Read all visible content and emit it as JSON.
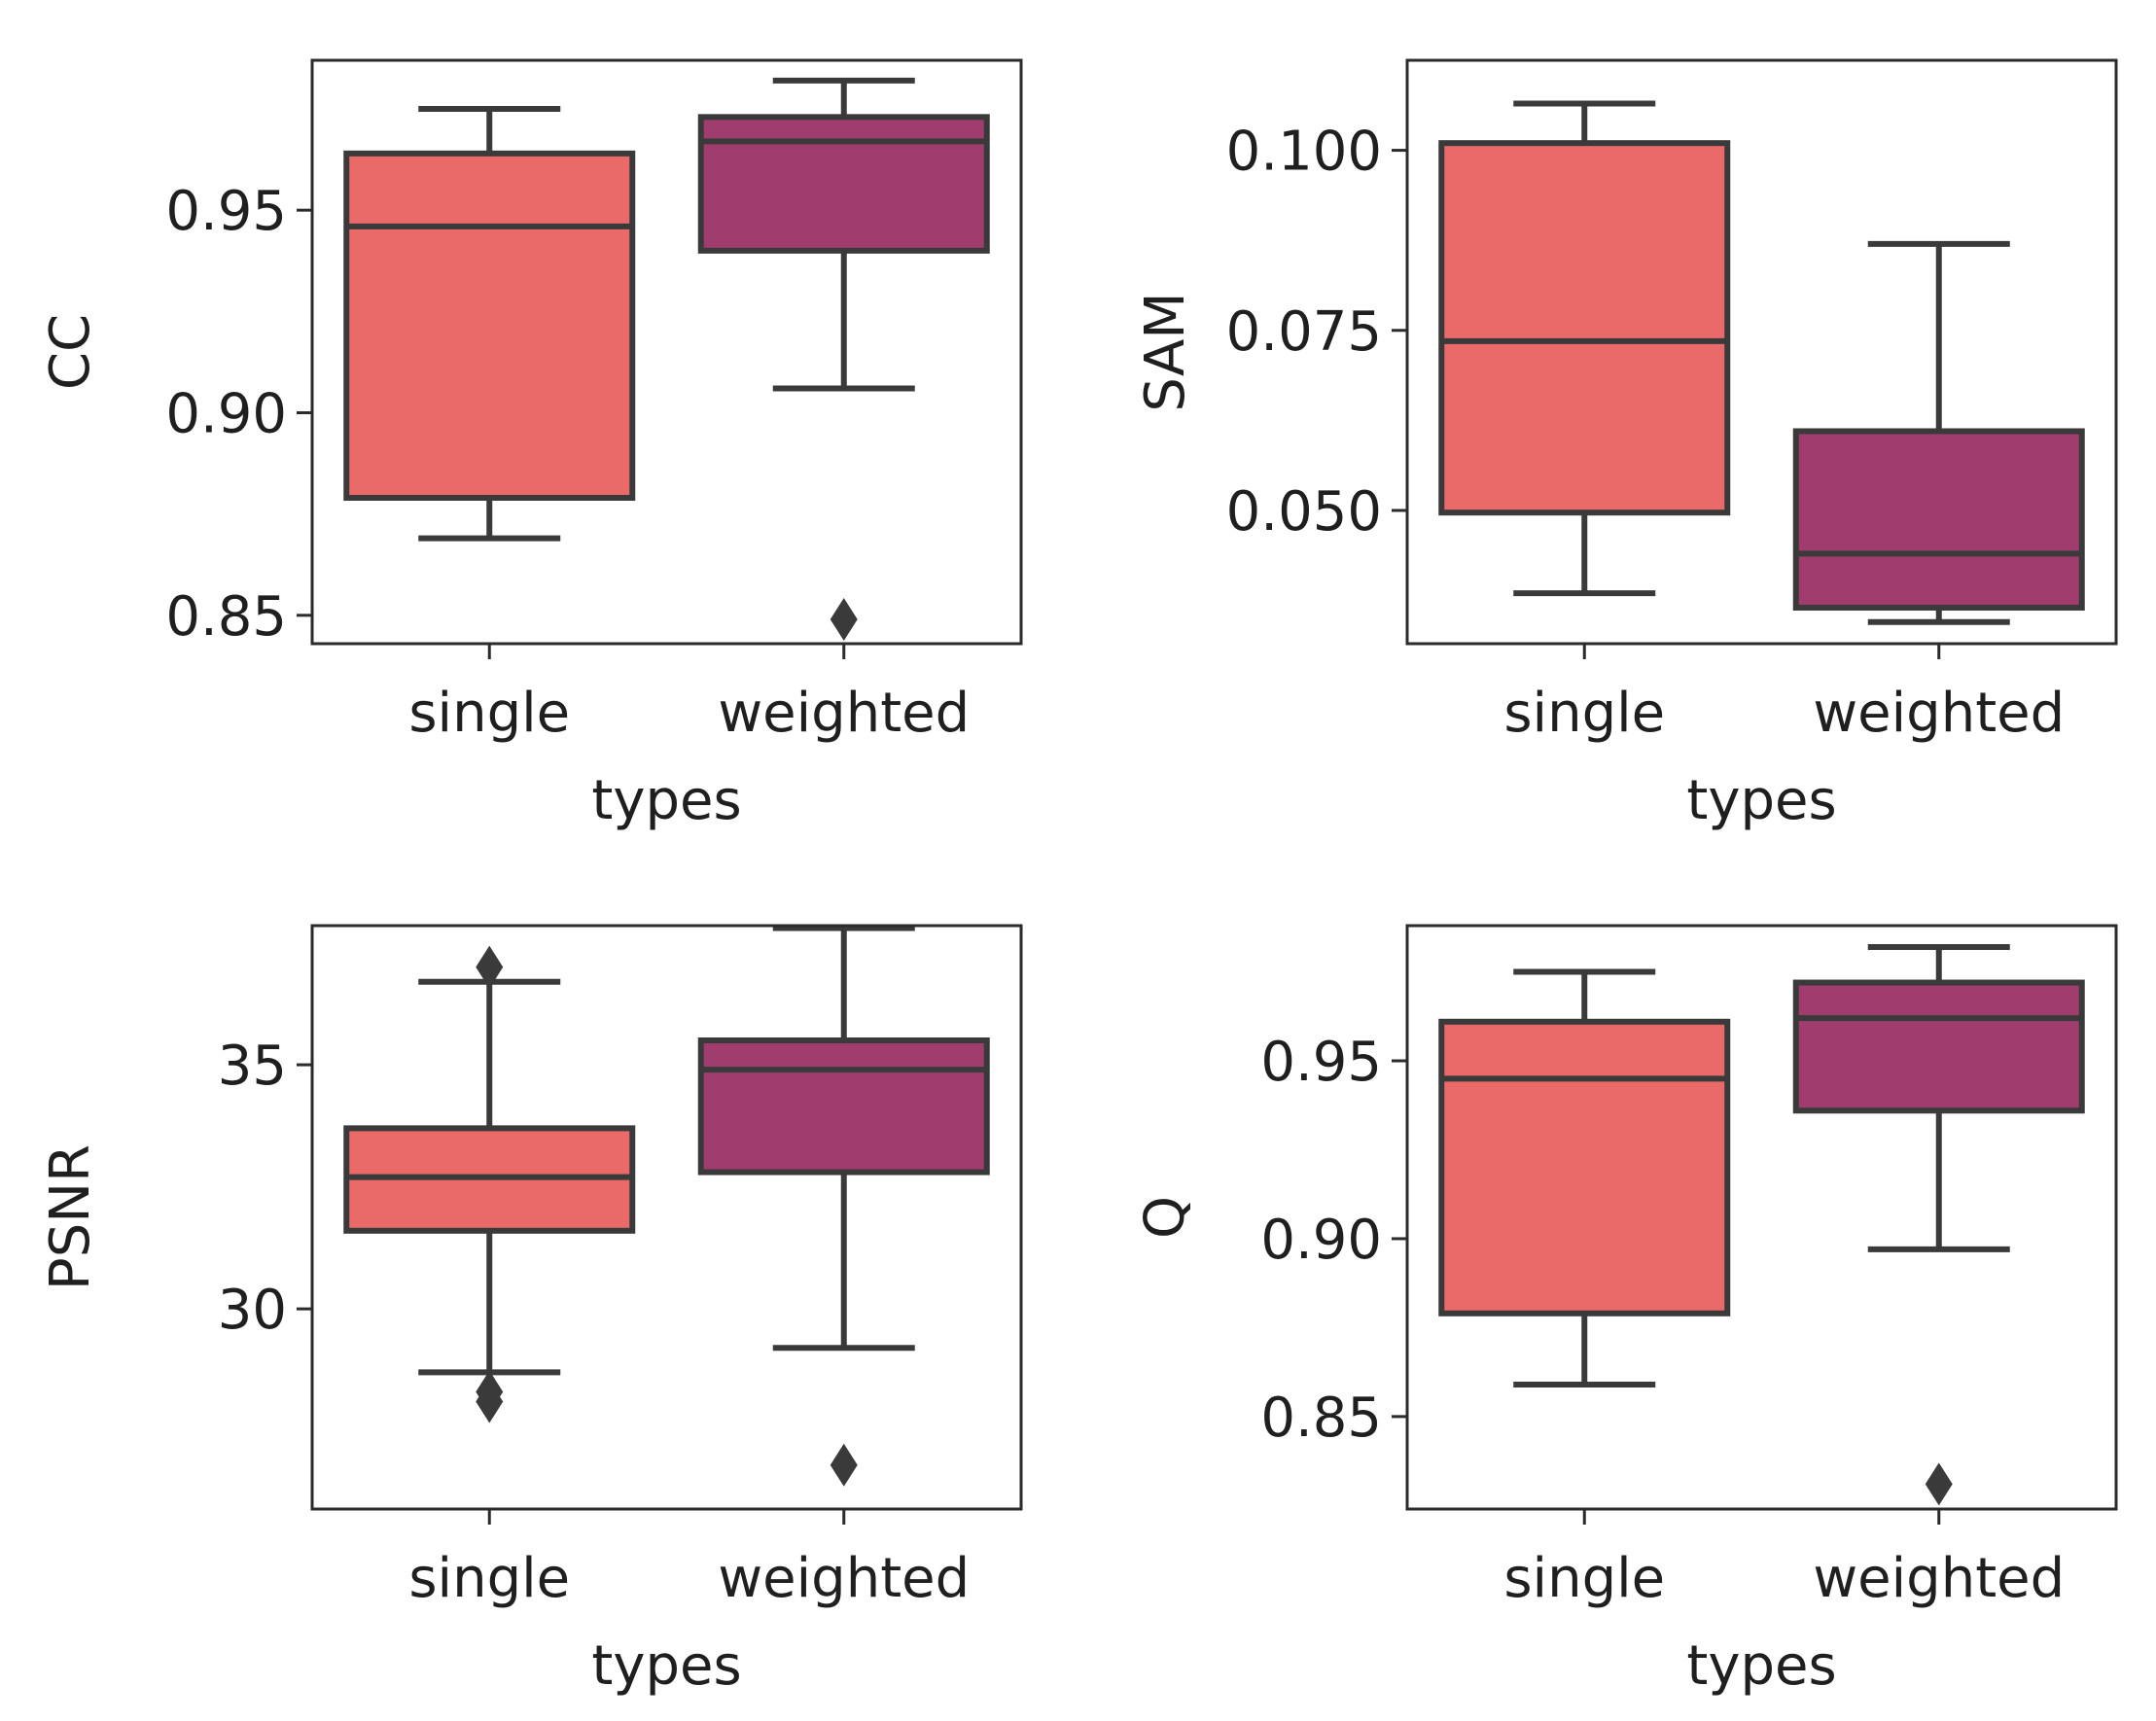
{
  "chart_data": [
    {
      "type": "box",
      "xlabel": "types",
      "ylabel": "CC",
      "categories": [
        "single",
        "weighted"
      ],
      "ylim": [
        0.843,
        0.987
      ],
      "yticks": [
        0.85,
        0.9,
        0.95
      ],
      "ytick_labels": [
        "0.85",
        "0.90",
        "0.95"
      ],
      "boxes": [
        {
          "category": "single",
          "whislo": 0.869,
          "q1": 0.879,
          "med": 0.946,
          "q3": 0.964,
          "whishi": 0.975,
          "fliers": [],
          "color": "#ea6a6a"
        },
        {
          "category": "weighted",
          "whislo": 0.906,
          "q1": 0.94,
          "med": 0.967,
          "q3": 0.973,
          "whishi": 0.982,
          "fliers": [
            0.849
          ],
          "color": "#a03d6e"
        }
      ]
    },
    {
      "type": "box",
      "xlabel": "types",
      "ylabel": "SAM",
      "categories": [
        "single",
        "weighted"
      ],
      "ylim": [
        0.0315,
        0.1125
      ],
      "yticks": [
        0.05,
        0.075,
        0.1
      ],
      "ytick_labels": [
        "0.050",
        "0.075",
        "0.100"
      ],
      "boxes": [
        {
          "category": "single",
          "whislo": 0.0385,
          "q1": 0.0497,
          "med": 0.0735,
          "q3": 0.101,
          "whishi": 0.1065,
          "fliers": [],
          "color": "#ea6a6a"
        },
        {
          "category": "weighted",
          "whislo": 0.0345,
          "q1": 0.0365,
          "med": 0.044,
          "q3": 0.061,
          "whishi": 0.087,
          "fliers": [],
          "color": "#a03d6e"
        }
      ]
    },
    {
      "type": "box",
      "xlabel": "types",
      "ylabel": "PSNR",
      "categories": [
        "single",
        "weighted"
      ],
      "ylim": [
        25.9,
        37.85
      ],
      "yticks": [
        30,
        35
      ],
      "ytick_labels": [
        "30",
        "35"
      ],
      "boxes": [
        {
          "category": "single",
          "whislo": 28.7,
          "q1": 31.6,
          "med": 32.7,
          "q3": 33.7,
          "whishi": 36.7,
          "fliers": [
            37.0,
            28.3,
            28.1
          ],
          "color": "#ea6a6a"
        },
        {
          "category": "weighted",
          "whislo": 29.2,
          "q1": 32.8,
          "med": 34.9,
          "q3": 35.5,
          "whishi": 37.8,
          "fliers": [
            26.8
          ],
          "color": "#a03d6e"
        }
      ]
    },
    {
      "type": "box",
      "xlabel": "types",
      "ylabel": "Q",
      "categories": [
        "single",
        "weighted"
      ],
      "ylim": [
        0.824,
        0.988
      ],
      "yticks": [
        0.85,
        0.9,
        0.95
      ],
      "ytick_labels": [
        "0.85",
        "0.90",
        "0.95"
      ],
      "boxes": [
        {
          "category": "single",
          "whislo": 0.859,
          "q1": 0.879,
          "med": 0.945,
          "q3": 0.961,
          "whishi": 0.975,
          "fliers": [],
          "color": "#ea6a6a"
        },
        {
          "category": "weighted",
          "whislo": 0.897,
          "q1": 0.936,
          "med": 0.962,
          "q3": 0.972,
          "whishi": 0.982,
          "fliers": [
            0.831
          ],
          "color": "#a03d6e"
        }
      ]
    }
  ]
}
